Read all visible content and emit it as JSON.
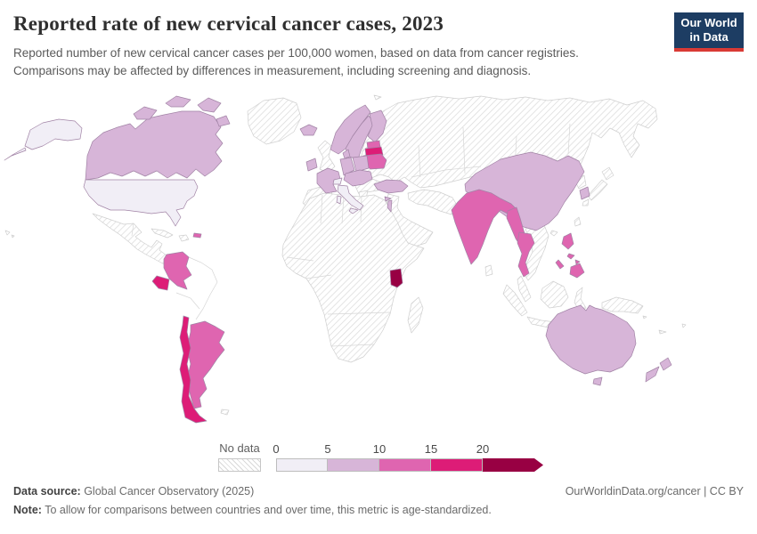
{
  "header": {
    "title": "Reported rate of new cervical cancer cases, 2023",
    "subtitle_line1": "Reported number of new cervical cancer cases per 100,000 women, based on data from cancer registries.",
    "subtitle_line2": "Comparisons may be affected by differences in measurement, including screening and diagnosis.",
    "logo_line1": "Our World",
    "logo_line2": "in Data",
    "logo_bg": "#1d3d63",
    "logo_accent": "#d93a35"
  },
  "legend": {
    "no_data_label": "No data",
    "ticks": [
      "0",
      "5",
      "10",
      "15",
      "20"
    ],
    "band_colors": [
      "#f1eef6",
      "#d7b5d8",
      "#df65b0",
      "#dd1c77",
      "#980043"
    ]
  },
  "footer": {
    "source_label": "Data source:",
    "source_value": " Global Cancer Observatory (2025)",
    "note_label": "Note:",
    "note_value": " To allow for comparisons between countries and over time, this metric is age-standardized.",
    "attribution": "OurWorldinData.org/cancer | CC BY"
  },
  "map": {
    "fills": {
      "canada": "#d7b5d8",
      "alaska": "#f1eef6",
      "usa": "#f1eef6",
      "puerto_rico": "#df65b0",
      "colombia": "#df65b0",
      "ecuador": "#dd1c77",
      "chile": "#dd1c77",
      "argentina": "#df65b0",
      "iceland": "#d7b5d8",
      "ireland": "#d7b5d8",
      "norway": "#d7b5d8",
      "sweden": "#d7b5d8",
      "finland": "#d7b5d8",
      "denmark": "#d7b5d8",
      "estonia": "#df65b0",
      "latvia": "#dd1c77",
      "lithuania_belarus": "#df65b0",
      "poland": "#d7b5d8",
      "germany": "#d7b5d8",
      "france": "#d7b5d8",
      "central_europe": "#d7b5d8",
      "switzerland": "#f1eef6",
      "italy": "#f1eef6",
      "turkey": "#d7b5d8",
      "cyprus": "#d7b5d8",
      "israel": "#d7b5d8",
      "uganda": "#980043",
      "china": "#d7b5d8",
      "south_korea": "#d7b5d8",
      "india": "#df65b0",
      "myanmar": "#df65b0",
      "thailand": "#df65b0",
      "philippines": "#df65b0",
      "australia": "#d7b5d8",
      "new_zealand": "#d7b5d8"
    }
  },
  "chart_data": {
    "type": "heatmap",
    "subtype": "world-choropleth",
    "title": "Reported rate of new cervical cancer cases, 2023",
    "unit": "new cases per 100,000 women (age-standardized)",
    "legend_bins": [
      "0-5",
      "5-10",
      "10-15",
      "15-20",
      "20+"
    ],
    "bin_colors": [
      "#f1eef6",
      "#d7b5d8",
      "#df65b0",
      "#dd1c77",
      "#980043"
    ],
    "no_data_style": "gray diagonal hatching",
    "entities": [
      {
        "name": "United States",
        "band": "0-5"
      },
      {
        "name": "Italy",
        "band": "0-5"
      },
      {
        "name": "Switzerland",
        "band": "0-5"
      },
      {
        "name": "Canada",
        "band": "5-10"
      },
      {
        "name": "Iceland",
        "band": "5-10"
      },
      {
        "name": "Ireland",
        "band": "5-10"
      },
      {
        "name": "Norway",
        "band": "5-10"
      },
      {
        "name": "Sweden",
        "band": "5-10"
      },
      {
        "name": "Finland",
        "band": "5-10"
      },
      {
        "name": "Denmark",
        "band": "5-10"
      },
      {
        "name": "France",
        "band": "5-10"
      },
      {
        "name": "Germany",
        "band": "5-10"
      },
      {
        "name": "Poland",
        "band": "5-10"
      },
      {
        "name": "Czechia",
        "band": "5-10"
      },
      {
        "name": "Austria",
        "band": "5-10"
      },
      {
        "name": "Hungary",
        "band": "5-10"
      },
      {
        "name": "Croatia",
        "band": "5-10"
      },
      {
        "name": "Turkey",
        "band": "5-10"
      },
      {
        "name": "Cyprus",
        "band": "5-10"
      },
      {
        "name": "Israel",
        "band": "5-10"
      },
      {
        "name": "China",
        "band": "5-10"
      },
      {
        "name": "South Korea",
        "band": "5-10"
      },
      {
        "name": "Australia",
        "band": "5-10"
      },
      {
        "name": "New Zealand",
        "band": "5-10"
      },
      {
        "name": "Colombia",
        "band": "10-15"
      },
      {
        "name": "Argentina",
        "band": "10-15"
      },
      {
        "name": "Puerto Rico",
        "band": "10-15"
      },
      {
        "name": "Estonia",
        "band": "10-15"
      },
      {
        "name": "Lithuania",
        "band": "10-15"
      },
      {
        "name": "Belarus",
        "band": "10-15"
      },
      {
        "name": "India",
        "band": "10-15"
      },
      {
        "name": "Myanmar",
        "band": "10-15"
      },
      {
        "name": "Thailand",
        "band": "10-15"
      },
      {
        "name": "Philippines",
        "band": "10-15"
      },
      {
        "name": "Ecuador",
        "band": "15-20"
      },
      {
        "name": "Chile",
        "band": "15-20"
      },
      {
        "name": "Latvia",
        "band": "15-20"
      },
      {
        "name": "Uganda",
        "band": "20+"
      }
    ],
    "no_data_examples": [
      "Mexico",
      "Brazil",
      "Peru",
      "Venezuela",
      "Greenland",
      "United Kingdom",
      "Spain",
      "Portugal",
      "Greece",
      "Ukraine",
      "Russia",
      "Kazakhstan",
      "Iran",
      "Saudi Arabia",
      "Pakistan",
      "Mongolia",
      "Japan",
      "Vietnam",
      "Indonesia",
      "Malaysia",
      "most of Africa",
      "Madagascar",
      "Papua New Guinea"
    ]
  }
}
